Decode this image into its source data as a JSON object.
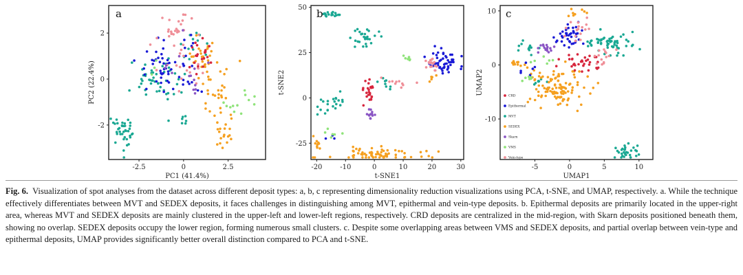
{
  "colors": {
    "CRD": "#d7263d",
    "Epithermal": "#1a1ad6",
    "MVT": "#1aa893",
    "SEDEX": "#f5a020",
    "Skarn": "#8a55c4",
    "VMS": "#8fe37a",
    "Vein-type": "#ef8f98"
  },
  "chart_data": [
    {
      "type": "scatter",
      "panel": "a",
      "method": "PCA",
      "xlabel": "PC1 (41.4%)",
      "ylabel": "PC2 (22.4%)",
      "xlim": [
        -4.2,
        4.6
      ],
      "ylim": [
        -3.5,
        3.2
      ],
      "xticks": [
        -2.5,
        0,
        2.5
      ],
      "yticks": [
        -2,
        0,
        2
      ],
      "clusters": [
        {
          "class": "MVT",
          "center": [
            -3.5,
            -2.4
          ],
          "spread": [
            0.3,
            0.4
          ],
          "n": 38
        },
        {
          "class": "MVT",
          "center": [
            -1.5,
            0.0
          ],
          "spread": [
            0.7,
            0.5
          ],
          "n": 48
        },
        {
          "class": "MVT",
          "center": [
            0.6,
            1.6
          ],
          "spread": [
            0.4,
            0.5
          ],
          "n": 12
        },
        {
          "class": "MVT",
          "center": [
            0.0,
            -1.8
          ],
          "spread": [
            0.1,
            0.1
          ],
          "n": 6
        },
        {
          "class": "Epithermal",
          "center": [
            -1.3,
            0.4
          ],
          "spread": [
            0.55,
            0.45
          ],
          "n": 42
        },
        {
          "class": "Epithermal",
          "center": [
            0.4,
            0.6
          ],
          "spread": [
            0.5,
            0.8
          ],
          "n": 14
        },
        {
          "class": "SEDEX",
          "center": [
            1.2,
            1.0
          ],
          "spread": [
            0.45,
            0.35
          ],
          "n": 30
        },
        {
          "class": "SEDEX",
          "center": [
            2.0,
            -0.9
          ],
          "spread": [
            0.6,
            0.9
          ],
          "n": 30
        },
        {
          "class": "SEDEX",
          "center": [
            2.3,
            -2.4
          ],
          "spread": [
            0.3,
            0.2
          ],
          "n": 14
        },
        {
          "class": "Vein-type",
          "center": [
            -0.4,
            2.2
          ],
          "spread": [
            0.5,
            0.5
          ],
          "n": 26
        },
        {
          "class": "Vein-type",
          "center": [
            0.3,
            0.6
          ],
          "spread": [
            0.6,
            0.5
          ],
          "n": 16
        },
        {
          "class": "CRD",
          "center": [
            0.7,
            1.1
          ],
          "spread": [
            0.4,
            0.35
          ],
          "n": 22
        },
        {
          "class": "Skarn",
          "center": [
            0.2,
            0.2
          ],
          "spread": [
            0.8,
            0.7
          ],
          "n": 14
        },
        {
          "class": "VMS",
          "center": [
            3.3,
            -1.2
          ],
          "spread": [
            0.4,
            0.3
          ],
          "n": 12
        },
        {
          "class": "VMS",
          "center": [
            -1.8,
            0.6
          ],
          "spread": [
            0.3,
            0.3
          ],
          "n": 3
        }
      ]
    },
    {
      "type": "scatter",
      "panel": "b",
      "method": "t-SNE",
      "xlabel": "t-SNE1",
      "ylabel": "t-SNE2",
      "xlim": [
        -22,
        31
      ],
      "ylim": [
        -34,
        51
      ],
      "xticks": [
        -20,
        -10,
        0,
        10,
        20,
        30
      ],
      "yticks": [
        -25,
        0,
        25,
        50
      ],
      "clusters": [
        {
          "class": "MVT",
          "center": [
            -15,
            46
          ],
          "spread": [
            1.5,
            0.6
          ],
          "n": 16
        },
        {
          "class": "MVT",
          "center": [
            -3,
            33
          ],
          "spread": [
            2.5,
            2.5
          ],
          "n": 28
        },
        {
          "class": "MVT",
          "center": [
            -14,
            -4
          ],
          "spread": [
            3,
            3
          ],
          "n": 22
        },
        {
          "class": "MVT",
          "center": [
            4,
            7
          ],
          "spread": [
            2.5,
            2.5
          ],
          "n": 8
        },
        {
          "class": "Epithermal",
          "center": [
            25,
            19
          ],
          "spread": [
            2.5,
            3
          ],
          "n": 50
        },
        {
          "class": "Epithermal",
          "center": [
            -15,
            -22
          ],
          "spread": [
            1,
            1
          ],
          "n": 3
        },
        {
          "class": "SEDEX",
          "center": [
            0,
            -31
          ],
          "spread": [
            9,
            1.8
          ],
          "n": 70
        },
        {
          "class": "SEDEX",
          "center": [
            -20,
            -25
          ],
          "spread": [
            0.5,
            1.2
          ],
          "n": 8
        },
        {
          "class": "SEDEX",
          "center": [
            20,
            11
          ],
          "spread": [
            0.8,
            1
          ],
          "n": 5
        },
        {
          "class": "CRD",
          "center": [
            -2,
            2
          ],
          "spread": [
            1,
            3
          ],
          "n": 24
        },
        {
          "class": "Skarn",
          "center": [
            -1,
            -9
          ],
          "spread": [
            0.8,
            1.5
          ],
          "n": 12
        },
        {
          "class": "Vein-type",
          "center": [
            20,
            19
          ],
          "spread": [
            1.5,
            3
          ],
          "n": 18
        },
        {
          "class": "Vein-type",
          "center": [
            9,
            8
          ],
          "spread": [
            2.5,
            1.5
          ],
          "n": 10
        },
        {
          "class": "VMS",
          "center": [
            11,
            23
          ],
          "spread": [
            1.5,
            1.5
          ],
          "n": 6
        },
        {
          "class": "VMS",
          "center": [
            -16,
            -20
          ],
          "spread": [
            2,
            2
          ],
          "n": 6
        }
      ]
    },
    {
      "type": "scatter",
      "panel": "c",
      "method": "UMAP",
      "xlabel": "UMAP1",
      "ylabel": "UMAP2",
      "xlim": [
        -10,
        12
      ],
      "ylim": [
        -17.5,
        11
      ],
      "xticks": [
        -5,
        0,
        5,
        10
      ],
      "yticks": [
        -10,
        0,
        10
      ],
      "legend": {
        "placement": "left-middle",
        "entries": [
          "CRD",
          "Epithermal",
          "MVT",
          "SEDEX",
          "Skarn",
          "VMS",
          "Vein-type"
        ]
      },
      "clusters": [
        {
          "class": "MVT",
          "center": [
            8,
            -16
          ],
          "spread": [
            1.2,
            0.8
          ],
          "n": 30
        },
        {
          "class": "MVT",
          "center": [
            6.5,
            4
          ],
          "spread": [
            2.2,
            1.1
          ],
          "n": 60
        },
        {
          "class": "MVT",
          "center": [
            -6,
            3.5
          ],
          "spread": [
            0.8,
            0.8
          ],
          "n": 12
        },
        {
          "class": "MVT",
          "center": [
            -4.5,
            -3
          ],
          "spread": [
            0.5,
            0.5
          ],
          "n": 8
        },
        {
          "class": "SEDEX",
          "center": [
            -1.5,
            -4
          ],
          "spread": [
            2.3,
            1.8
          ],
          "n": 110
        },
        {
          "class": "SEDEX",
          "center": [
            -7.5,
            0
          ],
          "spread": [
            0.7,
            0.5
          ],
          "n": 12
        },
        {
          "class": "SEDEX",
          "center": [
            1,
            9.5
          ],
          "spread": [
            0.5,
            0.4
          ],
          "n": 8
        },
        {
          "class": "Epithermal",
          "center": [
            0,
            5.5
          ],
          "spread": [
            1.2,
            1.2
          ],
          "n": 40
        },
        {
          "class": "Epithermal",
          "center": [
            -5.5,
            -0.5
          ],
          "spread": [
            0.8,
            0.8
          ],
          "n": 6
        },
        {
          "class": "CRD",
          "center": [
            1.5,
            0.5
          ],
          "spread": [
            1.5,
            0.9
          ],
          "n": 32
        },
        {
          "class": "Skarn",
          "center": [
            -3.5,
            3
          ],
          "spread": [
            0.8,
            0.5
          ],
          "n": 16
        },
        {
          "class": "Vein-type",
          "center": [
            1,
            6.5
          ],
          "spread": [
            0.8,
            1.2
          ],
          "n": 16
        },
        {
          "class": "Vein-type",
          "center": [
            5,
            1.5
          ],
          "spread": [
            1,
            0.8
          ],
          "n": 14
        },
        {
          "class": "VMS",
          "center": [
            -6,
            -2.2
          ],
          "spread": [
            0.4,
            0.4
          ],
          "n": 6
        },
        {
          "class": "VMS",
          "center": [
            -3.5,
            0
          ],
          "spread": [
            0.6,
            0.6
          ],
          "n": 6
        }
      ]
    }
  ],
  "caption": {
    "label": "Fig. 6.",
    "text": "Visualization of spot analyses from the dataset across different deposit types: a, b, c representing dimensionality reduction visualizations using PCA, t-SNE, and UMAP, respectively. a. While the technique effectively differentiates between MVT and SEDEX deposits, it faces challenges in distinguishing among MVT, epithermal and vein-type deposits. b. Epithermal deposits are primarily located in the upper-right area, whereas MVT and SEDEX deposits are mainly clustered in the upper-left and lower-left regions, respectively. CRD deposits are centralized in the mid-region, with Skarn deposits positioned beneath them, showing no overlap. SEDEX deposits occupy the lower region, forming numerous small clusters. c. Despite some overlapping areas between VMS and SEDEX deposits, and partial overlap between vein-type and epithermal deposits, UMAP provides significantly better overall distinction compared to PCA and t-SNE."
  }
}
